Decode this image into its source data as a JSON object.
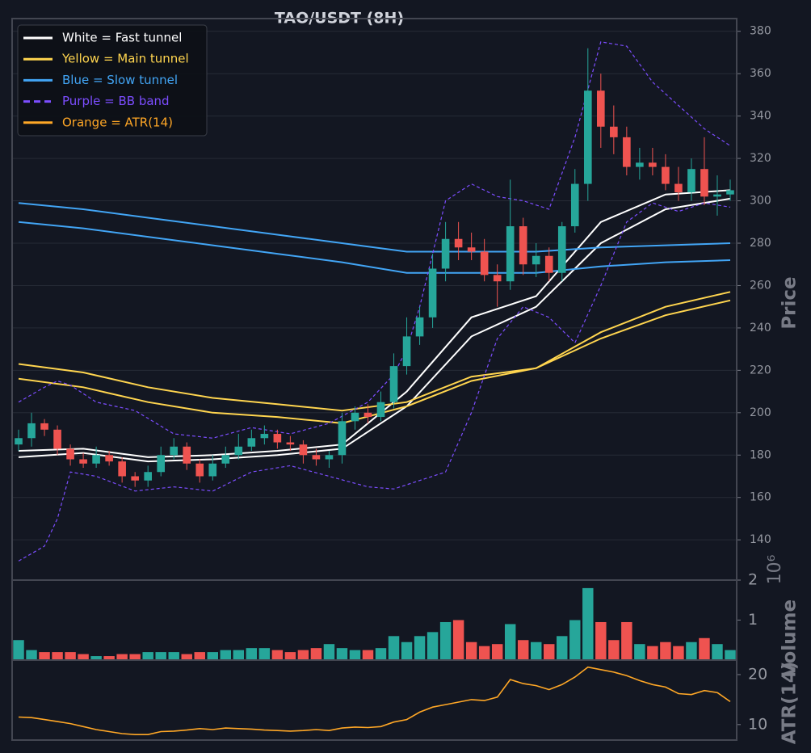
{
  "chart_data": [
    {
      "type": "candlestick",
      "title": "TAO/USDT (8H)",
      "ylabel": "Price",
      "xlim": [
        -0.5,
        55.5
      ],
      "ylim": [
        121,
        386
      ],
      "yticks": [
        140,
        160,
        180,
        200,
        220,
        240,
        260,
        280,
        300,
        320,
        340,
        360,
        380
      ],
      "grid": true,
      "legend": "upper left",
      "up_color": "#26a69a",
      "down_color": "#ef5350",
      "open": [
        185,
        188,
        195,
        192,
        183,
        178,
        176,
        180,
        177,
        170,
        168,
        172,
        180,
        184,
        176,
        170,
        176,
        180,
        184,
        188,
        190,
        186,
        185,
        180,
        178,
        180,
        196,
        200,
        198,
        205,
        222,
        236,
        245,
        268,
        282,
        278,
        276,
        265,
        262,
        288,
        270,
        274,
        266,
        288,
        308,
        352,
        335,
        330,
        316,
        318,
        316,
        308,
        304,
        315,
        302,
        303
      ],
      "high": [
        192,
        200,
        197,
        194,
        185,
        181,
        184,
        182,
        179,
        172,
        175,
        184,
        188,
        186,
        178,
        180,
        184,
        190,
        192,
        194,
        192,
        189,
        187,
        183,
        182,
        200,
        203,
        204,
        210,
        228,
        245,
        250,
        275,
        290,
        290,
        285,
        282,
        270,
        310,
        292,
        280,
        278,
        290,
        315,
        372,
        360,
        345,
        335,
        325,
        325,
        322,
        316,
        320,
        330,
        312,
        310
      ],
      "low": [
        182,
        184,
        189,
        180,
        175,
        174,
        174,
        175,
        167,
        165,
        165,
        170,
        178,
        173,
        167,
        168,
        174,
        178,
        182,
        185,
        183,
        182,
        176,
        175,
        174,
        176,
        192,
        195,
        196,
        202,
        218,
        232,
        240,
        262,
        272,
        272,
        262,
        250,
        258,
        265,
        264,
        262,
        262,
        285,
        300,
        325,
        322,
        312,
        310,
        312,
        305,
        300,
        300,
        298,
        293,
        300
      ],
      "close": [
        188,
        195,
        192,
        183,
        178,
        176,
        180,
        177,
        170,
        168,
        172,
        180,
        184,
        176,
        170,
        176,
        180,
        184,
        188,
        190,
        186,
        185,
        180,
        178,
        180,
        196,
        200,
        198,
        205,
        222,
        236,
        245,
        268,
        282,
        278,
        276,
        265,
        262,
        288,
        270,
        274,
        266,
        288,
        308,
        352,
        335,
        330,
        316,
        318,
        316,
        308,
        304,
        315,
        302,
        303,
        305
      ],
      "series": [
        {
          "name": "White = Fast tunnel",
          "color": "#ffffff",
          "x": [
            0,
            5,
            10,
            15,
            20,
            25,
            30,
            35,
            40,
            45,
            50,
            55
          ],
          "upper": [
            182,
            183,
            179,
            180,
            182,
            185,
            210,
            245,
            255,
            290,
            303,
            305
          ],
          "lower": [
            179,
            181,
            177,
            178,
            180,
            183,
            203,
            236,
            250,
            280,
            296,
            301
          ]
        },
        {
          "name": "Yellow = Main tunnel",
          "color": "#ffd54f",
          "x": [
            0,
            5,
            10,
            15,
            20,
            25,
            30,
            35,
            40,
            45,
            50,
            55
          ],
          "upper": [
            223,
            219,
            212,
            207,
            204,
            201,
            205,
            217,
            221,
            238,
            250,
            257
          ],
          "lower": [
            216,
            212,
            205,
            200,
            198,
            195,
            203,
            215,
            221,
            235,
            246,
            253
          ]
        },
        {
          "name": "Blue = Slow tunnel",
          "color": "#42a5f5",
          "x": [
            0,
            5,
            10,
            15,
            20,
            25,
            30,
            35,
            40,
            45,
            50,
            55
          ],
          "upper": [
            299,
            296,
            292,
            288,
            284,
            280,
            276,
            276,
            276,
            278,
            279,
            280
          ],
          "lower": [
            290,
            287,
            283,
            279,
            275,
            271,
            266,
            266,
            266,
            269,
            271,
            272
          ]
        },
        {
          "name": "Purple = BB band",
          "color": "#7c4dff",
          "dashed": true,
          "x": [
            0,
            2,
            3,
            4,
            6,
            9,
            12,
            15,
            18,
            21,
            24,
            27,
            29,
            30,
            31,
            33,
            35,
            37,
            39,
            41,
            43,
            45,
            47,
            49,
            51,
            53,
            55
          ],
          "upper": [
            205,
            212,
            215,
            213,
            205,
            201,
            190,
            188,
            193,
            190,
            195,
            205,
            218,
            230,
            250,
            300,
            308,
            302,
            300,
            296,
            330,
            375,
            373,
            356,
            345,
            334,
            326
          ],
          "lower": [
            130,
            137,
            150,
            172,
            170,
            163,
            165,
            163,
            172,
            175,
            170,
            165,
            164,
            166,
            168,
            172,
            200,
            235,
            250,
            245,
            233,
            260,
            290,
            299,
            295,
            299,
            297
          ]
        }
      ]
    },
    {
      "type": "bar",
      "ylabel": "Volume",
      "offset_label": "10⁶",
      "xlim": [
        -0.5,
        55.5
      ],
      "ylim": [
        0,
        2
      ],
      "yticks": [
        1,
        2
      ],
      "up_color": "#26a69a",
      "down_color": "#ef5350",
      "values": [
        0.5,
        0.25,
        0.2,
        0.2,
        0.2,
        0.15,
        0.1,
        0.1,
        0.15,
        0.15,
        0.2,
        0.2,
        0.2,
        0.15,
        0.2,
        0.2,
        0.25,
        0.25,
        0.3,
        0.3,
        0.25,
        0.2,
        0.25,
        0.3,
        0.4,
        0.3,
        0.25,
        0.25,
        0.3,
        0.6,
        0.45,
        0.6,
        0.7,
        0.95,
        1.0,
        0.45,
        0.35,
        0.4,
        0.9,
        0.5,
        0.45,
        0.4,
        0.6,
        1.0,
        1.8,
        0.95,
        0.5,
        0.95,
        0.4,
        0.35,
        0.45,
        0.35,
        0.45,
        0.55,
        0.4,
        0.25
      ]
    },
    {
      "type": "line",
      "ylabel": "ATR(14)",
      "xlim": [
        -0.5,
        55.5
      ],
      "ylim": [
        6.9,
        22.9
      ],
      "yticks": [
        10,
        20
      ],
      "series": [
        {
          "name": "Orange = ATR(14)",
          "color": "#ffa726",
          "values": [
            11.5,
            11.4,
            11.0,
            10.6,
            10.2,
            9.6,
            9.0,
            8.6,
            8.2,
            8.0,
            8.0,
            8.6,
            8.7,
            8.9,
            9.2,
            9.0,
            9.3,
            9.2,
            9.1,
            8.9,
            8.8,
            8.7,
            8.8,
            9.0,
            8.8,
            9.3,
            9.5,
            9.4,
            9.6,
            10.5,
            11.0,
            12.5,
            13.5,
            14.0,
            14.5,
            15.0,
            14.8,
            15.5,
            19.0,
            18.2,
            17.8,
            17.0,
            18.0,
            19.5,
            21.5,
            21.0,
            20.5,
            19.8,
            18.8,
            18.0,
            17.5,
            16.2,
            16.0,
            16.8,
            16.4,
            14.6
          ]
        }
      ]
    }
  ]
}
